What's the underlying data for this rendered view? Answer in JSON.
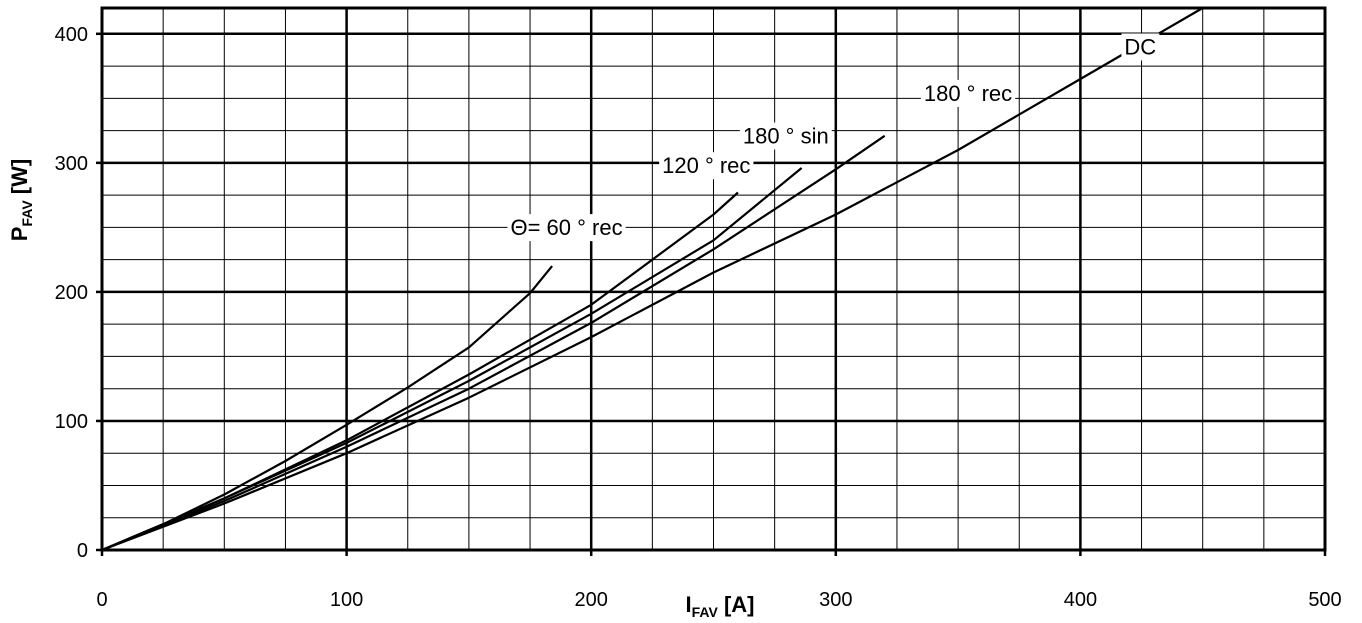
{
  "chart_data": {
    "type": "line",
    "title": "",
    "xlabel": {
      "main": "I",
      "sub": "FAV",
      "unit": " [A]"
    },
    "ylabel": {
      "main": "P",
      "sub": "FAV",
      "unit": " [W]"
    },
    "xlim": [
      0,
      500
    ],
    "ylim": [
      0,
      420
    ],
    "xticks": [
      0,
      100,
      200,
      300,
      400,
      500
    ],
    "yticks": [
      0,
      100,
      200,
      300,
      400
    ],
    "grid": true,
    "minor_grid": {
      "x_step": 25,
      "y_step": 25
    },
    "series": [
      {
        "name": "Θ= 60 ° rec",
        "x": [
          0,
          25,
          50,
          75,
          100,
          125,
          150,
          175,
          184
        ],
        "y": [
          0,
          20,
          43,
          69,
          97,
          126,
          157,
          199,
          220
        ]
      },
      {
        "name": "120 ° rec",
        "x": [
          0,
          50,
          100,
          150,
          200,
          250,
          260
        ],
        "y": [
          0,
          40,
          85,
          136,
          190,
          260,
          277
        ]
      },
      {
        "name": "180 ° sin",
        "x": [
          0,
          50,
          100,
          150,
          200,
          250,
          286
        ],
        "y": [
          0,
          40,
          83,
          131,
          183,
          240,
          296
        ]
      },
      {
        "name": "180 ° rec",
        "x": [
          0,
          50,
          100,
          150,
          200,
          250,
          300,
          320
        ],
        "y": [
          0,
          38,
          80,
          125,
          176,
          233,
          295,
          321
        ]
      },
      {
        "name": "DC",
        "x": [
          0,
          50,
          100,
          150,
          200,
          250,
          300,
          350,
          400,
          450
        ],
        "y": [
          0,
          36,
          75,
          118,
          165,
          215,
          260,
          310,
          365,
          420
        ]
      }
    ],
    "labels": [
      {
        "text": "Θ= 60 ° rec",
        "x": 167,
        "y": 244
      },
      {
        "text": "120 ° rec",
        "x": 229,
        "y": 292
      },
      {
        "text": "180 ° sin",
        "x": 262,
        "y": 315
      },
      {
        "text": "180 ° rec",
        "x": 336,
        "y": 348
      },
      {
        "text": "DC",
        "x": 418,
        "y": 384
      }
    ]
  }
}
